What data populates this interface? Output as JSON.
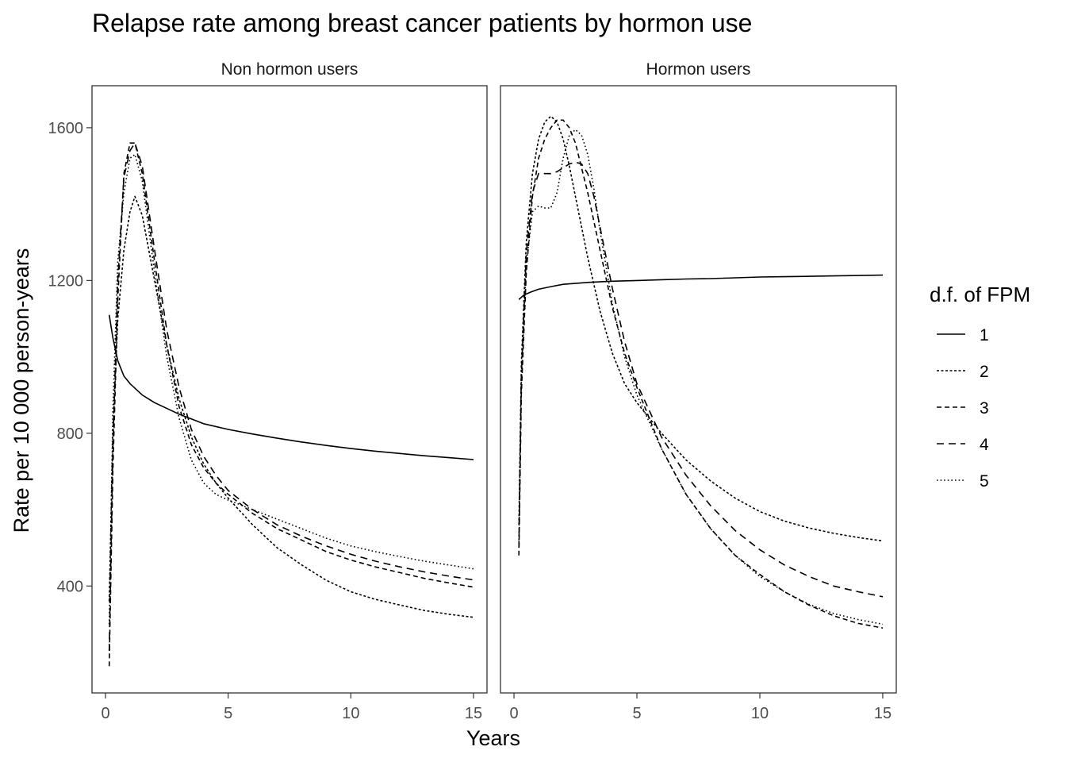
{
  "chart_data": {
    "type": "line",
    "title": "Relapse rate among breast cancer patients by hormon use",
    "xlabel": "Years",
    "ylabel": "Rate per 10 000 person-years",
    "xlim": [
      -0.55,
      15.55
    ],
    "ylim": [
      120,
      1710
    ],
    "xticks": [
      0,
      5,
      10,
      15
    ],
    "yticks": [
      400,
      800,
      1200,
      1600
    ],
    "grid": false,
    "legend": {
      "title": "d.f. of FPM",
      "position": "right",
      "entries": [
        {
          "label": "1",
          "dash": "solid"
        },
        {
          "label": "2",
          "dash": "dotted"
        },
        {
          "label": "3",
          "dash": "short-dashed"
        },
        {
          "label": "4",
          "dash": "dashed"
        },
        {
          "label": "5",
          "dash": "fine-dotted"
        }
      ]
    },
    "panels": [
      {
        "strip": "Non hormon users",
        "series": [
          {
            "name": "1",
            "x": [
              0.15,
              0.3,
              0.5,
              0.75,
              1,
              1.5,
              2,
              3,
              4,
              5,
              6,
              7,
              8,
              9,
              10,
              11,
              12,
              13,
              14,
              15
            ],
            "y": [
              1110,
              1050,
              990,
              950,
              930,
              900,
              880,
              850,
              825,
              810,
              798,
              787,
              777,
              768,
              760,
              753,
              747,
              741,
              736,
              731
            ]
          },
          {
            "name": "2",
            "x": [
              0.15,
              0.3,
              0.5,
              0.75,
              1,
              1.2,
              1.5,
              2,
              2.5,
              3,
              3.5,
              4,
              4.5,
              5,
              6,
              7,
              8,
              9,
              10,
              11,
              12,
              13,
              14,
              15
            ],
            "y": [
              360,
              800,
              1100,
              1280,
              1380,
              1420,
              1370,
              1200,
              1030,
              890,
              790,
              720,
              670,
              630,
              560,
              500,
              455,
              415,
              385,
              365,
              350,
              336,
              326,
              318
            ]
          },
          {
            "name": "3",
            "x": [
              0.15,
              0.3,
              0.5,
              0.75,
              1,
              1.2,
              1.5,
              2,
              2.5,
              3,
              3.5,
              4,
              4.5,
              5,
              6,
              7,
              8,
              9,
              10,
              11,
              12,
              13,
              14,
              15
            ],
            "y": [
              190,
              700,
              1150,
              1480,
              1560,
              1560,
              1480,
              1250,
              1030,
              870,
              770,
              710,
              670,
              640,
              590,
              550,
              520,
              490,
              468,
              450,
              435,
              420,
              408,
              397
            ]
          },
          {
            "name": "4",
            "x": [
              0.15,
              0.3,
              0.5,
              0.75,
              1,
              1.2,
              1.5,
              2,
              2.5,
              3,
              3.5,
              4,
              4.5,
              5,
              6,
              7,
              8,
              9,
              10,
              11,
              12,
              13,
              14,
              15
            ],
            "y": [
              230,
              760,
              1200,
              1470,
              1540,
              1560,
              1500,
              1280,
              1070,
              920,
              810,
              740,
              690,
              650,
              600,
              560,
              530,
              505,
              483,
              465,
              450,
              437,
              426,
              416
            ]
          },
          {
            "name": "5",
            "x": [
              0.15,
              0.3,
              0.5,
              0.75,
              1,
              1.2,
              1.5,
              2,
              2.5,
              3,
              3.5,
              4,
              4.5,
              5,
              6,
              7,
              8,
              9,
              10,
              11,
              12,
              13,
              14,
              15
            ],
            "y": [
              300,
              860,
              1250,
              1430,
              1520,
              1530,
              1460,
              1220,
              1000,
              840,
              730,
              670,
              640,
              625,
              600,
              575,
              550,
              525,
              505,
              490,
              477,
              465,
              455,
              445
            ]
          }
        ]
      },
      {
        "strip": "Hormon users",
        "series": [
          {
            "name": "1",
            "x": [
              0.2,
              0.4,
              0.7,
              1,
              1.5,
              2,
              3,
              4,
              5,
              6,
              7,
              8,
              9,
              10,
              11,
              12,
              13,
              14,
              15
            ],
            "y": [
              1150,
              1162,
              1170,
              1177,
              1184,
              1190,
              1195,
              1198,
              1200,
              1202,
              1204,
              1205,
              1207,
              1209,
              1210,
              1211,
              1212,
              1213,
              1214
            ]
          },
          {
            "name": "2",
            "x": [
              0.2,
              0.3,
              0.5,
              0.75,
              1,
              1.25,
              1.5,
              1.75,
              2,
              2.25,
              2.5,
              3,
              3.5,
              4,
              4.5,
              5,
              6,
              7,
              8,
              9,
              10,
              11,
              12,
              13,
              14,
              15
            ],
            "y": [
              560,
              980,
              1300,
              1480,
              1570,
              1615,
              1630,
              1615,
              1570,
              1500,
              1420,
              1260,
              1120,
              1010,
              930,
              880,
              800,
              730,
              675,
              630,
              595,
              570,
              552,
              538,
              527,
              518
            ]
          },
          {
            "name": "3",
            "x": [
              0.2,
              0.3,
              0.5,
              0.75,
              1,
              1.25,
              1.5,
              1.75,
              2,
              2.25,
              2.5,
              3,
              3.5,
              4,
              4.5,
              5,
              6,
              7,
              8,
              9,
              10,
              11,
              12,
              13,
              14,
              15
            ],
            "y": [
              480,
              900,
              1220,
              1420,
              1520,
              1570,
              1600,
              1620,
              1620,
              1600,
              1560,
              1430,
              1280,
              1130,
              1010,
              920,
              760,
              640,
              550,
              480,
              430,
              385,
              350,
              322,
              302,
              290
            ]
          },
          {
            "name": "4",
            "x": [
              0.2,
              0.3,
              0.5,
              0.75,
              1,
              1.25,
              1.5,
              1.75,
              2,
              2.25,
              2.5,
              2.75,
              3,
              3.25,
              3.5,
              4,
              4.5,
              5,
              6,
              7,
              8,
              9,
              10,
              11,
              12,
              13,
              14,
              15
            ],
            "y": [
              500,
              950,
              1270,
              1430,
              1480,
              1480,
              1480,
              1485,
              1495,
              1505,
              1510,
              1505,
              1480,
              1420,
              1340,
              1180,
              1040,
              930,
              790,
              690,
              610,
              545,
              495,
              455,
              425,
              400,
              385,
              372
            ]
          },
          {
            "name": "5",
            "x": [
              0.2,
              0.3,
              0.5,
              0.75,
              1,
              1.25,
              1.5,
              1.75,
              2,
              2.25,
              2.5,
              2.75,
              3,
              3.25,
              3.5,
              4,
              4.5,
              5,
              6,
              7,
              8,
              9,
              10,
              11,
              12,
              13,
              14,
              15
            ],
            "y": [
              520,
              930,
              1240,
              1380,
              1395,
              1390,
              1390,
              1430,
              1520,
              1580,
              1595,
              1580,
              1530,
              1440,
              1330,
              1140,
              1000,
              900,
              760,
              640,
              550,
              480,
              425,
              385,
              352,
              328,
              312,
              300
            ]
          }
        ]
      }
    ]
  }
}
